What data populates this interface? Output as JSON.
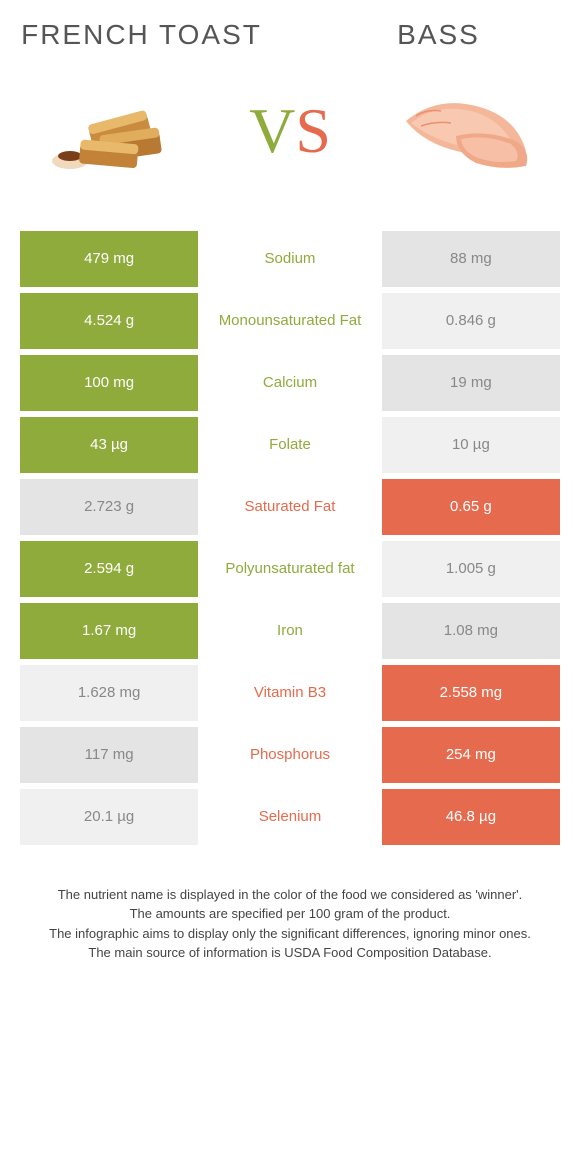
{
  "titles": {
    "left": "FRENCH TOAST",
    "right": "BASS"
  },
  "vs": {
    "v": "V",
    "s": "S"
  },
  "colors": {
    "left_winner": "#8fab3b",
    "right_winner": "#e56a4e",
    "loser_a": "#e4e4e4",
    "loser_b": "#f0f0f0",
    "loser_text": "#888888"
  },
  "rows": [
    {
      "left_val": "479 mg",
      "label": "Sodium",
      "right_val": "88 mg",
      "winner": "left"
    },
    {
      "left_val": "4.524 g",
      "label": "Monounsaturated Fat",
      "right_val": "0.846 g",
      "winner": "left"
    },
    {
      "left_val": "100 mg",
      "label": "Calcium",
      "right_val": "19 mg",
      "winner": "left"
    },
    {
      "left_val": "43 µg",
      "label": "Folate",
      "right_val": "10 µg",
      "winner": "left"
    },
    {
      "left_val": "2.723 g",
      "label": "Saturated Fat",
      "right_val": "0.65 g",
      "winner": "right"
    },
    {
      "left_val": "2.594 g",
      "label": "Polyunsaturated fat",
      "right_val": "1.005 g",
      "winner": "left"
    },
    {
      "left_val": "1.67 mg",
      "label": "Iron",
      "right_val": "1.08 mg",
      "winner": "left"
    },
    {
      "left_val": "1.628 mg",
      "label": "Vitamin B3",
      "right_val": "2.558 mg",
      "winner": "right"
    },
    {
      "left_val": "117 mg",
      "label": "Phosphorus",
      "right_val": "254 mg",
      "winner": "right"
    },
    {
      "left_val": "20.1 µg",
      "label": "Selenium",
      "right_val": "46.8 µg",
      "winner": "right"
    }
  ],
  "footer": {
    "line1": "The nutrient name is displayed in the color of the food we considered as 'winner'.",
    "line2": "The amounts are specified per 100 gram of the product.",
    "line3": "The infographic aims to display only the significant differences, ignoring minor ones.",
    "line4": "The main source of information is USDA Food Composition Database."
  }
}
